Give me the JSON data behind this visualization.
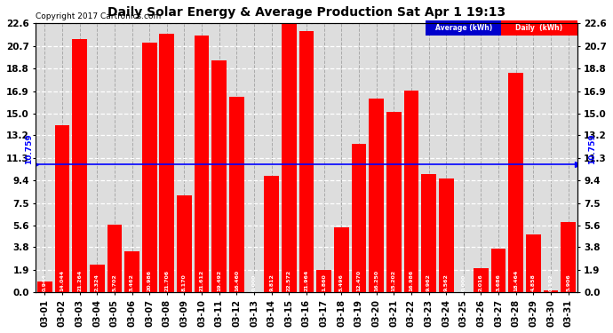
{
  "title": "Daily Solar Energy & Average Production Sat Apr 1 19:13",
  "copyright": "Copyright 2017 Cartronics.com",
  "average_label": "10.759",
  "average_value": 10.759,
  "bar_color": "#FF0000",
  "avg_line_color": "#0000FF",
  "background_color": "#FFFFFF",
  "plot_bg_color": "#DDDDDD",
  "grid_color_h": "#FFFFFF",
  "grid_color_v": "#AAAAAA",
  "categories": [
    "03-01",
    "03-02",
    "03-03",
    "03-04",
    "03-05",
    "03-06",
    "03-07",
    "03-08",
    "03-09",
    "03-10",
    "03-11",
    "03-12",
    "03-13",
    "03-14",
    "03-15",
    "03-16",
    "03-17",
    "03-18",
    "03-19",
    "03-20",
    "03-21",
    "03-22",
    "03-23",
    "03-24",
    "03-25",
    "03-26",
    "03-27",
    "03-28",
    "03-29",
    "03-30",
    "03-31"
  ],
  "values": [
    0.944,
    14.044,
    21.264,
    2.324,
    5.702,
    3.462,
    20.986,
    21.706,
    8.17,
    21.612,
    19.492,
    16.46,
    0.0,
    9.812,
    22.572,
    21.964,
    1.86,
    5.496,
    12.47,
    16.25,
    15.202,
    16.986,
    9.962,
    9.562,
    0.0,
    2.016,
    3.686,
    18.464,
    4.858,
    0.192,
    5.906
  ],
  "ylim": [
    0.0,
    22.6
  ],
  "yticks": [
    0.0,
    1.9,
    3.8,
    5.6,
    7.5,
    9.4,
    11.3,
    13.2,
    15.0,
    16.9,
    18.8,
    20.7,
    22.6
  ],
  "legend_avg_color": "#0000CC",
  "legend_daily_color": "#FF0000",
  "legend_avg_text": "Average (kWh)",
  "legend_daily_text": "Daily  (kWh)",
  "value_label_fontsize": 4.5,
  "title_fontsize": 10,
  "tick_fontsize": 7.5,
  "copyright_fontsize": 6.5
}
